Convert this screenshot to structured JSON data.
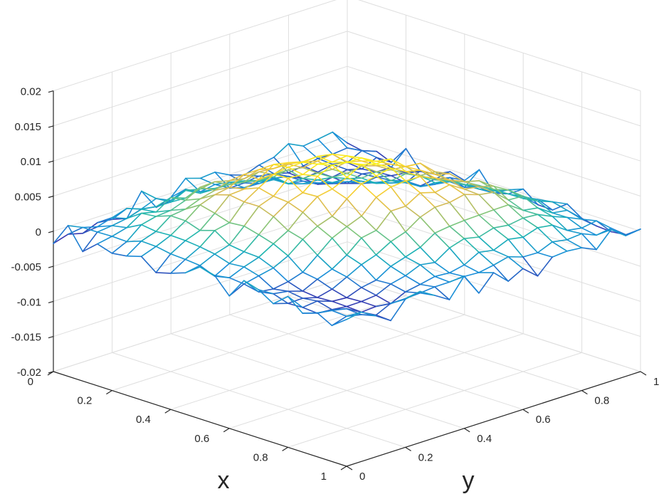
{
  "chart_data": {
    "type": "surface",
    "title": "",
    "xlabel": "x",
    "ylabel": "y",
    "zlabel": "",
    "x_range": [
      0,
      1
    ],
    "y_range": [
      0,
      1
    ],
    "z_range": [
      -0.02,
      0.02
    ],
    "x_ticks": [
      "0",
      "0.2",
      "0.4",
      "0.6",
      "0.8",
      "1"
    ],
    "y_ticks": [
      "0",
      "0.2",
      "0.4",
      "0.6",
      "0.8",
      "1"
    ],
    "z_ticks": [
      "-0.02",
      "-0.015",
      "-0.01",
      "-0.005",
      "0",
      "0.005",
      "0.01",
      "0.015",
      "0.02"
    ],
    "grid": true,
    "grid_resolution": 21,
    "colormap": "parula",
    "colormap_stops": [
      "#3e26a8",
      "#1a8ed9",
      "#1cb5b2",
      "#7ec67c",
      "#d7ba55",
      "#f9d12f",
      "#f9fb15"
    ],
    "surface_function": {
      "description": "z = A*sin(pi*x)*sin(pi*y)*cos(2*pi*(x-y)) plus noise along boundaries",
      "amplitude": 0.008
    }
  }
}
